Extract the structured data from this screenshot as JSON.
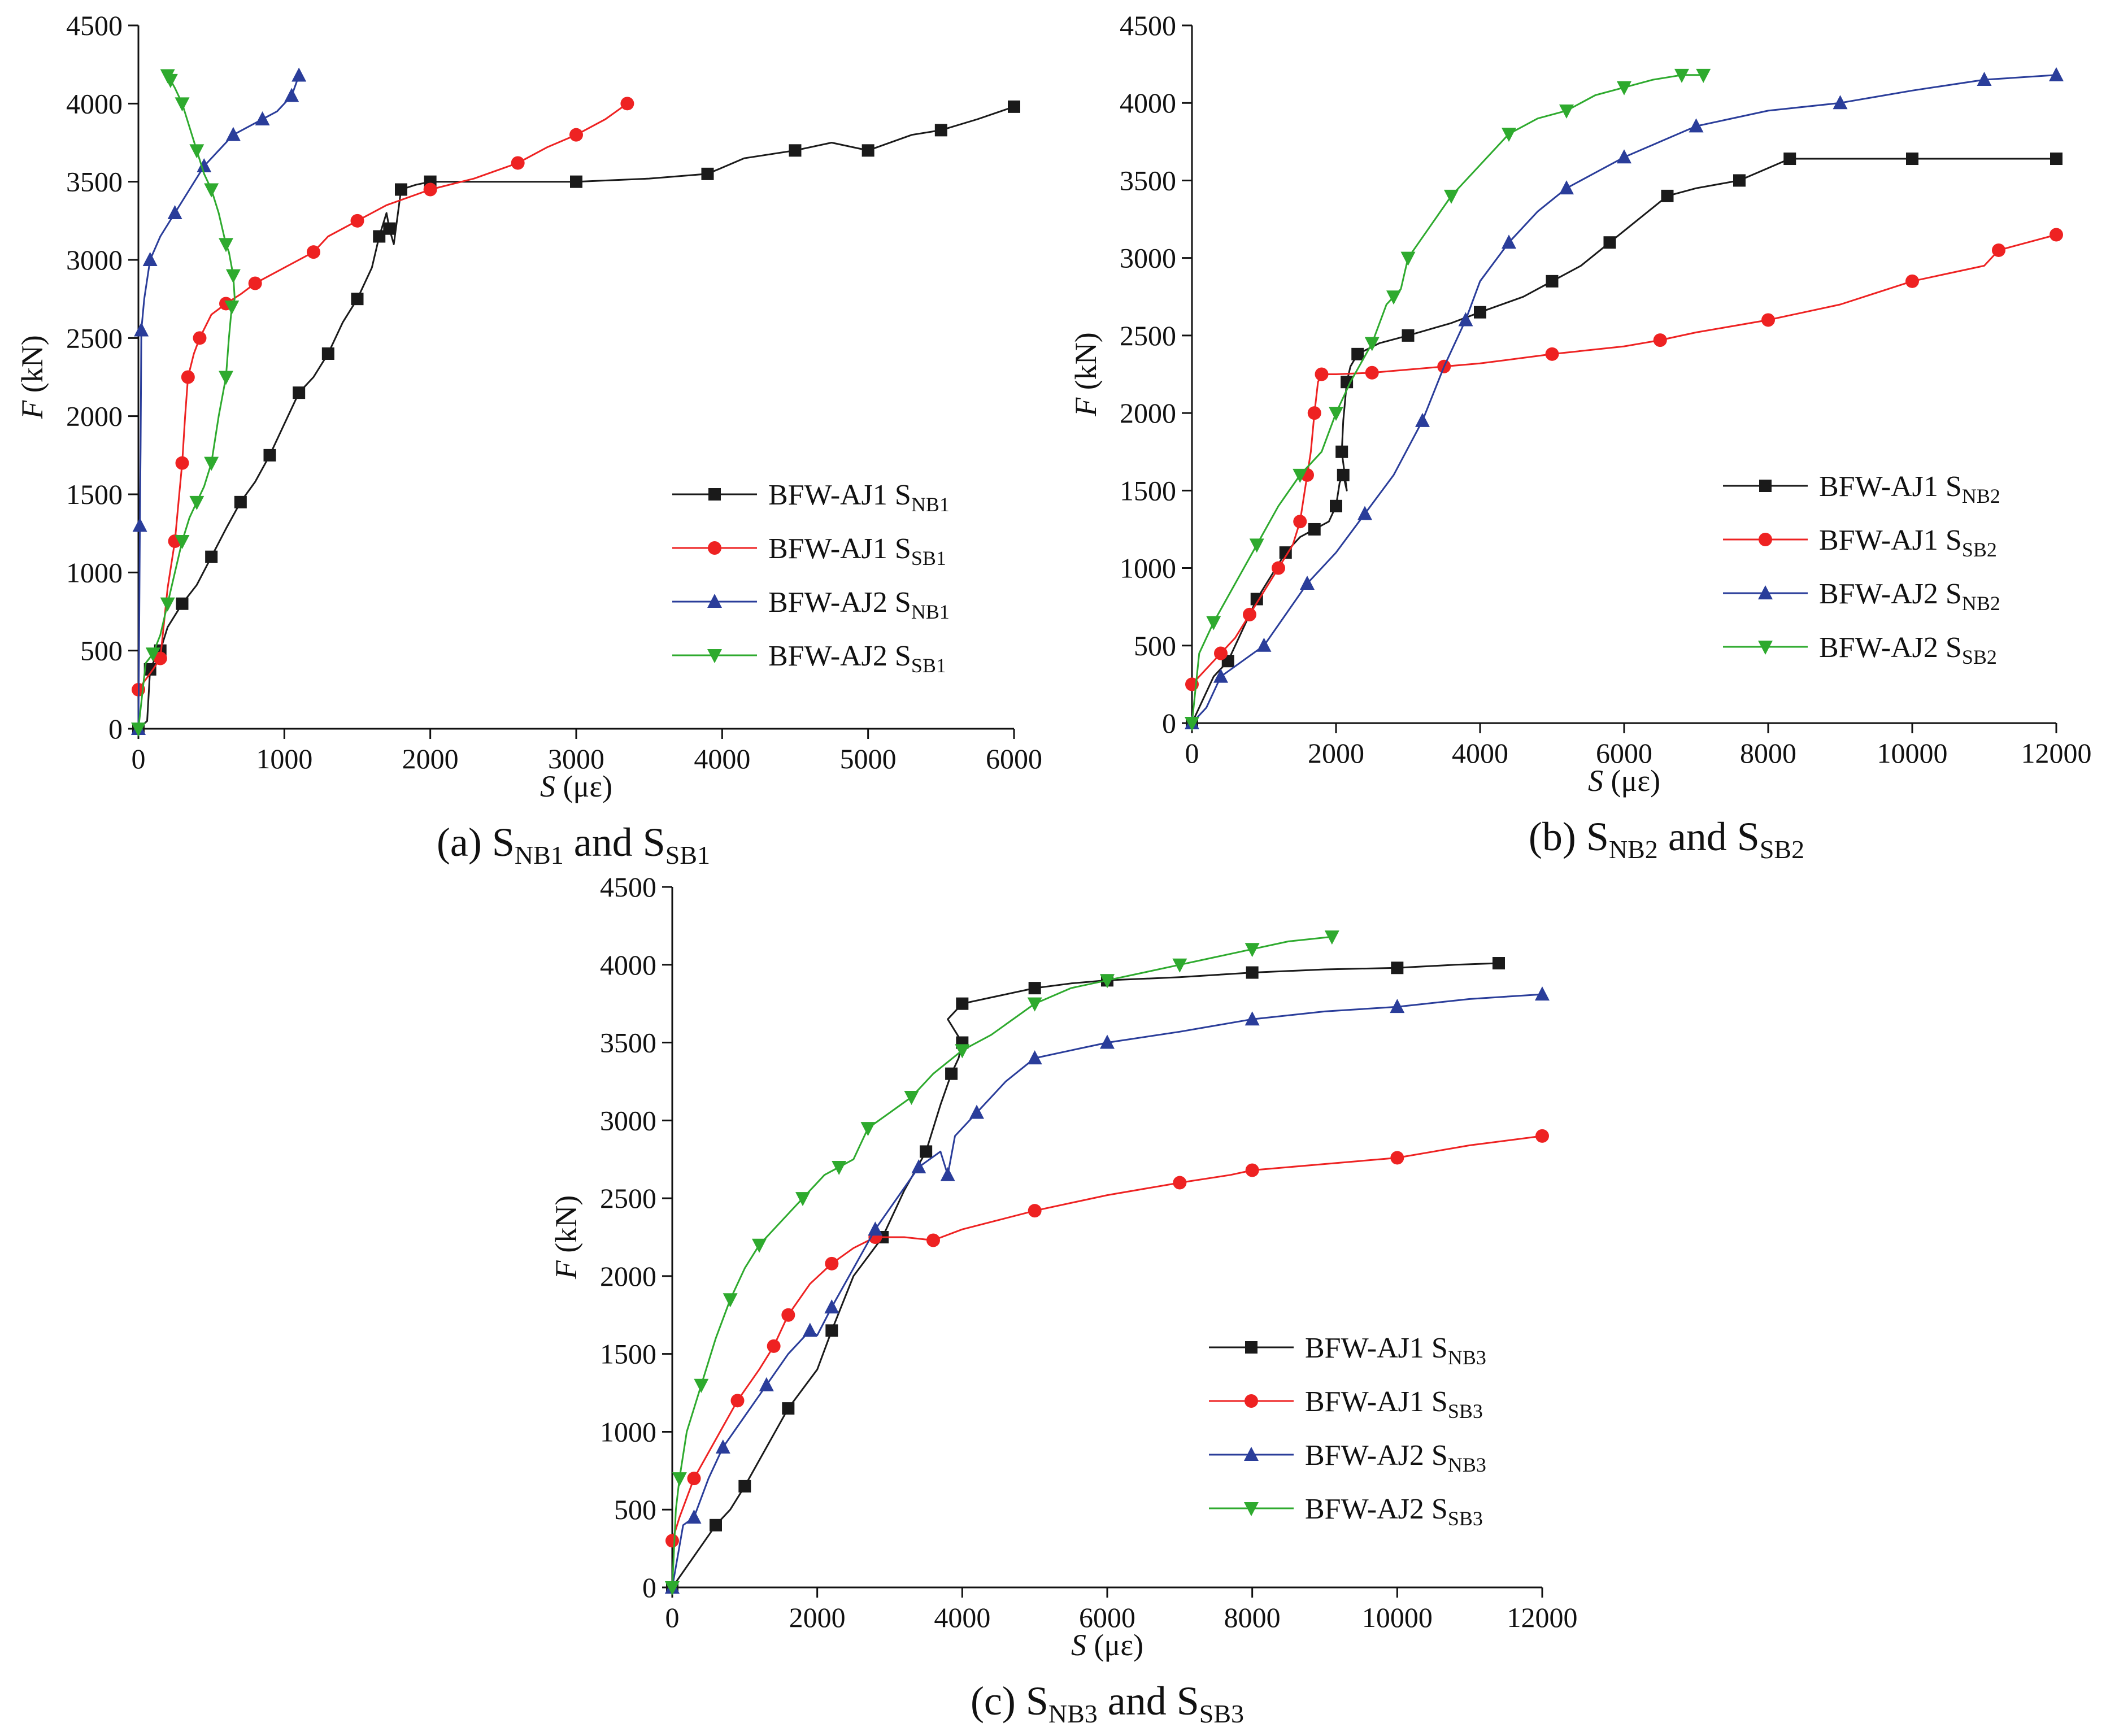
{
  "figure": {
    "panels": [
      {
        "caption": {
          "prefix": "(a) S",
          "sub1": "NB1",
          "mid": " and S",
          "sub2": "SB1"
        }
      },
      {
        "caption": {
          "prefix": "(b) S",
          "sub1": "NB2",
          "mid": " and S",
          "sub2": "SB2"
        }
      },
      {
        "caption": {
          "prefix": "(c) S",
          "sub1": "NB3",
          "mid": " and S",
          "sub2": "SB3"
        }
      }
    ]
  },
  "chart_data": [
    {
      "type": "line",
      "title": "(a) SNB1 and SSB1",
      "xlabel_var": "S",
      "xlabel_unit": " (με)",
      "ylabel_var": "F",
      "ylabel_unit": " (kN)",
      "xlim": [
        0,
        6000
      ],
      "ylim": [
        0,
        4500
      ],
      "xticks": [
        0,
        1000,
        2000,
        3000,
        4000,
        5000,
        6000
      ],
      "yticks": [
        0,
        500,
        1000,
        1500,
        2000,
        2500,
        3000,
        3500,
        4000,
        4500
      ],
      "grid": false,
      "legend_position": "bottom-right",
      "series": [
        {
          "name": "BFW-AJ1 S",
          "sub": "NB1",
          "color": "#1a1a1a",
          "marker": "square",
          "x": [
            0,
            60,
            80,
            100,
            150,
            200,
            300,
            400,
            500,
            600,
            700,
            800,
            900,
            1000,
            1100,
            1200,
            1300,
            1400,
            1500,
            1600,
            1650,
            1700,
            1720,
            1750,
            1800,
            1900,
            2000,
            2500,
            3000,
            3500,
            3900,
            4150,
            4500,
            4750,
            5000,
            5300,
            5500,
            5750,
            6000
          ],
          "y": [
            0,
            50,
            380,
            420,
            500,
            650,
            800,
            920,
            1100,
            1280,
            1450,
            1580,
            1750,
            1950,
            2150,
            2250,
            2400,
            2600,
            2750,
            2950,
            3150,
            3300,
            3200,
            3100,
            3450,
            3480,
            3500,
            3500,
            3500,
            3520,
            3550,
            3650,
            3700,
            3750,
            3700,
            3800,
            3830,
            3900,
            3980
          ]
        },
        {
          "name": "BFW-AJ1 S",
          "sub": "SB1",
          "color": "#ee2222",
          "marker": "circle",
          "x": [
            0,
            100,
            150,
            200,
            250,
            280,
            300,
            320,
            340,
            380,
            420,
            500,
            600,
            700,
            800,
            1000,
            1200,
            1300,
            1500,
            1700,
            2000,
            2300,
            2600,
            2800,
            3000,
            3200,
            3350
          ],
          "y": [
            250,
            380,
            450,
            900,
            1200,
            1500,
            1700,
            2000,
            2250,
            2400,
            2500,
            2650,
            2720,
            2780,
            2850,
            2950,
            3050,
            3150,
            3250,
            3350,
            3450,
            3520,
            3620,
            3720,
            3800,
            3900,
            4000
          ]
        },
        {
          "name": "BFW-AJ2 S",
          "sub": "NB1",
          "color": "#2a3d9a",
          "marker": "triangle-up",
          "x": [
            0,
            5,
            10,
            15,
            20,
            40,
            80,
            150,
            250,
            350,
            450,
            550,
            650,
            750,
            850,
            950,
            1050,
            1100
          ],
          "y": [
            0,
            600,
            1300,
            1800,
            2550,
            2750,
            3000,
            3150,
            3300,
            3450,
            3600,
            3700,
            3800,
            3850,
            3900,
            3950,
            4050,
            4180
          ]
        },
        {
          "name": "BFW-AJ2 S",
          "sub": "SB1",
          "color": "#2eaa2e",
          "marker": "triangle-down",
          "x": [
            0,
            50,
            100,
            150,
            200,
            250,
            300,
            350,
            400,
            450,
            500,
            550,
            600,
            620,
            640,
            660,
            650,
            620,
            600,
            550,
            500,
            450,
            400,
            350,
            300,
            250,
            220,
            200
          ],
          "y": [
            0,
            420,
            480,
            600,
            800,
            1000,
            1200,
            1350,
            1450,
            1550,
            1700,
            2000,
            2250,
            2500,
            2700,
            2750,
            2900,
            3050,
            3100,
            3300,
            3450,
            3550,
            3700,
            3850,
            4000,
            4100,
            4150,
            4180
          ]
        }
      ]
    },
    {
      "type": "line",
      "title": "(b) SNB2 and SSB2",
      "xlabel_var": "S",
      "xlabel_unit": " (με)",
      "ylabel_var": "F",
      "ylabel_unit": " (kN)",
      "xlim": [
        0,
        12000
      ],
      "ylim": [
        0,
        4500
      ],
      "xticks": [
        0,
        2000,
        4000,
        6000,
        8000,
        10000,
        12000
      ],
      "yticks": [
        0,
        500,
        1000,
        1500,
        2000,
        2500,
        3000,
        3500,
        4000,
        4500
      ],
      "grid": false,
      "legend_position": "center-right",
      "series": [
        {
          "name": "BFW-AJ1 S",
          "sub": "NB2",
          "color": "#1a1a1a",
          "marker": "square",
          "x": [
            0,
            300,
            500,
            700,
            900,
            1100,
            1300,
            1500,
            1700,
            1900,
            2000,
            2050,
            2100,
            2150,
            2080,
            2100,
            2150,
            2200,
            2300,
            2600,
            3000,
            3600,
            4000,
            4600,
            5000,
            5400,
            5800,
            6200,
            6600,
            7000,
            7600,
            8000,
            8300,
            9000,
            10000,
            11000,
            12000
          ],
          "y": [
            0,
            300,
            400,
            600,
            800,
            950,
            1100,
            1200,
            1250,
            1300,
            1400,
            1550,
            1600,
            1500,
            1750,
            1950,
            2200,
            2300,
            2380,
            2450,
            2500,
            2580,
            2650,
            2750,
            2850,
            2950,
            3100,
            3250,
            3400,
            3450,
            3500,
            3580,
            3640,
            3640,
            3640,
            3640,
            3640
          ]
        },
        {
          "name": "BFW-AJ1 S",
          "sub": "SB2",
          "color": "#ee2222",
          "marker": "circle",
          "x": [
            0,
            200,
            400,
            600,
            800,
            1000,
            1200,
            1400,
            1500,
            1550,
            1600,
            1650,
            1700,
            1750,
            1800,
            2000,
            2500,
            3000,
            3500,
            4000,
            5000,
            6000,
            6500,
            7000,
            8000,
            9000,
            10000,
            11000,
            11200,
            11600,
            12000
          ],
          "y": [
            250,
            350,
            450,
            550,
            700,
            850,
            1000,
            1150,
            1300,
            1450,
            1600,
            1750,
            2000,
            2200,
            2250,
            2250,
            2260,
            2280,
            2300,
            2320,
            2380,
            2430,
            2470,
            2520,
            2600,
            2700,
            2850,
            2950,
            3050,
            3100,
            3150
          ]
        },
        {
          "name": "BFW-AJ2 S",
          "sub": "NB2",
          "color": "#2a3d9a",
          "marker": "triangle-up",
          "x": [
            0,
            200,
            400,
            700,
            1000,
            1300,
            1600,
            2000,
            2400,
            2800,
            3200,
            3500,
            3800,
            4000,
            4400,
            4800,
            5200,
            5600,
            6000,
            6500,
            7000,
            8000,
            9000,
            10000,
            11000,
            12000
          ],
          "y": [
            0,
            100,
            300,
            400,
            500,
            700,
            900,
            1100,
            1350,
            1600,
            1950,
            2300,
            2600,
            2850,
            3100,
            3300,
            3450,
            3550,
            3650,
            3750,
            3850,
            3950,
            4000,
            4080,
            4150,
            4180
          ]
        },
        {
          "name": "BFW-AJ2 S",
          "sub": "SB2",
          "color": "#2eaa2e",
          "marker": "triangle-down",
          "x": [
            0,
            100,
            300,
            600,
            900,
            1200,
            1500,
            1800,
            2000,
            2200,
            2500,
            2700,
            2800,
            2900,
            3000,
            3300,
            3600,
            4000,
            4400,
            4800,
            5200,
            5600,
            6000,
            6400,
            6800,
            7100
          ],
          "y": [
            0,
            450,
            650,
            900,
            1150,
            1400,
            1600,
            1750,
            2000,
            2200,
            2450,
            2700,
            2750,
            2800,
            3000,
            3200,
            3400,
            3600,
            3800,
            3900,
            3950,
            4050,
            4100,
            4150,
            4180,
            4180
          ]
        }
      ]
    },
    {
      "type": "line",
      "title": "(c) SNB3 and SSB3",
      "xlabel_var": "S",
      "xlabel_unit": " (με)",
      "ylabel_var": "F",
      "ylabel_unit": " (kN)",
      "xlim": [
        0,
        12000
      ],
      "ylim": [
        0,
        4500
      ],
      "xticks": [
        0,
        2000,
        4000,
        6000,
        8000,
        10000,
        12000
      ],
      "yticks": [
        0,
        500,
        1000,
        1500,
        2000,
        2500,
        3000,
        3500,
        4000,
        4500
      ],
      "grid": false,
      "legend_position": "center-right",
      "series": [
        {
          "name": "BFW-AJ1 S",
          "sub": "NB3",
          "color": "#1a1a1a",
          "marker": "square",
          "x": [
            0,
            300,
            600,
            800,
            1000,
            1300,
            1600,
            2000,
            2200,
            2500,
            2900,
            3200,
            3500,
            3700,
            3850,
            3950,
            4000,
            3800,
            4000,
            4500,
            5000,
            5500,
            6000,
            7000,
            8000,
            9000,
            10000,
            10800,
            11400
          ],
          "y": [
            0,
            200,
            400,
            500,
            650,
            900,
            1150,
            1400,
            1650,
            2000,
            2250,
            2550,
            2800,
            3100,
            3300,
            3400,
            3500,
            3650,
            3750,
            3800,
            3850,
            3880,
            3900,
            3920,
            3950,
            3970,
            3980,
            4000,
            4010
          ]
        },
        {
          "name": "BFW-AJ1 S",
          "sub": "SB3",
          "color": "#ee2222",
          "marker": "circle",
          "x": [
            0,
            100,
            300,
            600,
            900,
            1200,
            1400,
            1500,
            1600,
            1900,
            2200,
            2500,
            2800,
            3200,
            3600,
            4000,
            5000,
            6000,
            7000,
            7700,
            8000,
            9000,
            10000,
            11000,
            12000
          ],
          "y": [
            300,
            450,
            700,
            950,
            1200,
            1400,
            1550,
            1650,
            1750,
            1950,
            2080,
            2180,
            2250,
            2250,
            2230,
            2300,
            2420,
            2520,
            2600,
            2650,
            2680,
            2720,
            2760,
            2840,
            2900
          ]
        },
        {
          "name": "BFW-AJ2 S",
          "sub": "NB3",
          "color": "#2a3d9a",
          "marker": "triangle-up",
          "x": [
            0,
            150,
            300,
            500,
            700,
            1000,
            1300,
            1600,
            1900,
            2000,
            2200,
            2500,
            2800,
            3100,
            3400,
            3700,
            3800,
            3900,
            4200,
            4600,
            5000,
            5500,
            6000,
            7000,
            8000,
            9000,
            10000,
            11000,
            12000
          ],
          "y": [
            0,
            400,
            450,
            700,
            900,
            1100,
            1300,
            1500,
            1650,
            1620,
            1800,
            2050,
            2300,
            2500,
            2700,
            2800,
            2650,
            2900,
            3050,
            3250,
            3400,
            3450,
            3500,
            3570,
            3650,
            3700,
            3730,
            3780,
            3810
          ]
        },
        {
          "name": "BFW-AJ2 S",
          "sub": "SB3",
          "color": "#2eaa2e",
          "marker": "triangle-down",
          "x": [
            0,
            50,
            100,
            200,
            400,
            600,
            800,
            1000,
            1200,
            1500,
            1800,
            2100,
            2300,
            2500,
            2700,
            3000,
            3300,
            3600,
            4000,
            4400,
            5000,
            5500,
            6000,
            6500,
            7000,
            7500,
            8000,
            8500,
            9100
          ],
          "y": [
            0,
            500,
            700,
            1000,
            1300,
            1600,
            1850,
            2050,
            2200,
            2350,
            2500,
            2650,
            2700,
            2750,
            2950,
            3050,
            3150,
            3300,
            3450,
            3550,
            3750,
            3850,
            3900,
            3950,
            4000,
            4050,
            4100,
            4150,
            4180
          ]
        }
      ]
    }
  ]
}
